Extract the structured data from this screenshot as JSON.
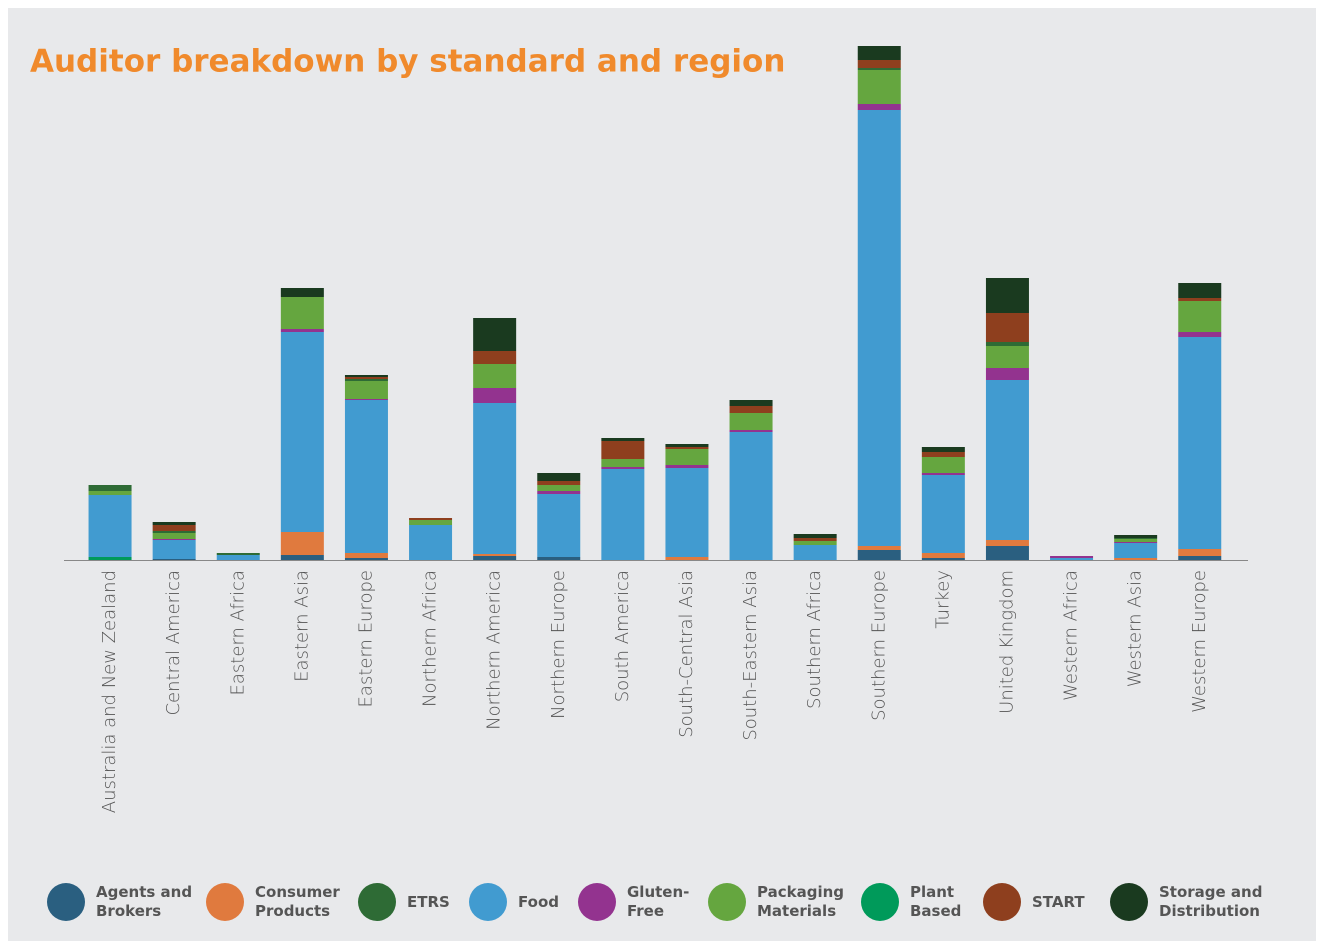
{
  "chart_data": {
    "type": "stacked-bar",
    "title": "Auditor breakdown by standard and region",
    "categories": [
      "Australia and New Zealand",
      "Central America",
      "Eastern Africa",
      "Eastern Asia",
      "Eastern Europe",
      "Northern Africa",
      "Northern America",
      "Northern Europe",
      "South America",
      "South-Central Asia",
      "South-Eastern Asia",
      "Southern Africa",
      "Southern Europe",
      "Turkey",
      "United Kingdom",
      "Western Africa",
      "Western Asia",
      "Western Europe"
    ],
    "ylim": [
      0,
      520
    ],
    "series": [
      {
        "name": "Agents and Brokers",
        "color": "#2a5f80",
        "values": [
          0,
          1,
          0,
          5,
          2,
          0,
          4,
          3,
          0,
          0,
          0,
          0,
          10,
          2,
          14,
          0,
          0,
          4
        ]
      },
      {
        "name": "Consumer Products",
        "color": "#e07a3e",
        "values": [
          0,
          0,
          0,
          23,
          5,
          0,
          2,
          0,
          0,
          3,
          0,
          0,
          4,
          5,
          6,
          0,
          2,
          7
        ]
      },
      {
        "name": "Plant Based",
        "color": "#009a5a",
        "values": [
          3,
          0,
          0,
          0,
          0,
          0,
          0,
          0,
          0,
          0,
          0,
          0,
          0,
          0,
          0,
          0,
          0,
          0
        ]
      },
      {
        "name": "Food",
        "color": "#419bd0",
        "values": [
          62,
          19,
          5,
          200,
          153,
          35,
          151,
          63,
          91,
          89,
          128,
          15,
          436,
          78,
          160,
          2,
          15,
          212
        ]
      },
      {
        "name": "Gluten-Free",
        "color": "#93338f",
        "values": [
          0,
          1,
          0,
          3,
          1,
          0,
          15,
          3,
          2,
          3,
          2,
          0,
          6,
          2,
          12,
          2,
          1,
          5
        ]
      },
      {
        "name": "Packaging Materials",
        "color": "#65a63f",
        "values": [
          4,
          6,
          0,
          32,
          18,
          5,
          24,
          6,
          8,
          16,
          17,
          4,
          34,
          16,
          22,
          0,
          3,
          31
        ]
      },
      {
        "name": "ETRS",
        "color": "#2e6b35",
        "values": [
          6,
          2,
          2,
          0,
          2,
          0,
          0,
          0,
          0,
          0,
          0,
          0,
          2,
          0,
          4,
          0,
          1,
          0
        ]
      },
      {
        "name": "START",
        "color": "#8e3f1e",
        "values": [
          0,
          6,
          0,
          0,
          2,
          2,
          13,
          4,
          18,
          2,
          7,
          3,
          8,
          5,
          29,
          0,
          0,
          3
        ]
      },
      {
        "name": "Storage and Distribution",
        "color": "#1a3a1f",
        "values": [
          0,
          3,
          0,
          9,
          2,
          0,
          33,
          8,
          3,
          3,
          6,
          4,
          14,
          5,
          35,
          0,
          3,
          15
        ]
      }
    ]
  }
}
